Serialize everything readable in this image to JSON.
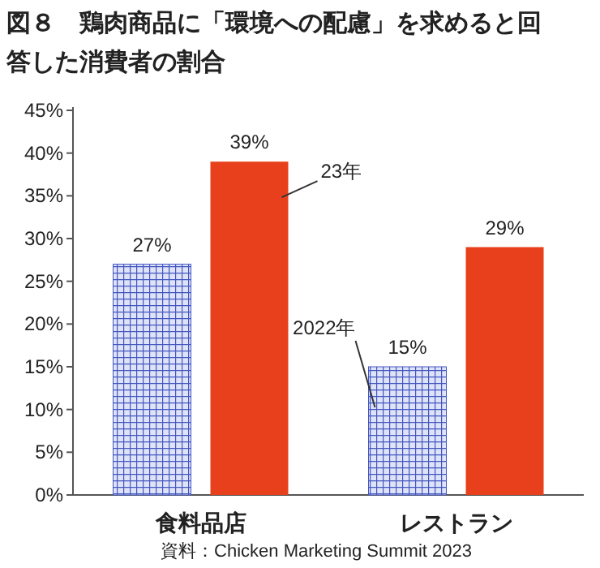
{
  "chart_data": {
    "type": "bar",
    "title": "図８　鶏肉商品に「環境への配慮」を求めると回答した消費者の割合",
    "categories": [
      "食料品店",
      "レストラン"
    ],
    "series": [
      {
        "name": "2022年",
        "color": "#4356c0",
        "values": [
          27,
          15
        ],
        "value_labels": [
          "27%",
          "15%"
        ]
      },
      {
        "name": "23年",
        "color": "#e8401c",
        "values": [
          39,
          29
        ],
        "value_labels": [
          "39%",
          "29%"
        ]
      }
    ],
    "ylim": [
      0,
      45
    ],
    "yticks": [
      {
        "value": 0,
        "label": "0%"
      },
      {
        "value": 5,
        "label": "5%"
      },
      {
        "value": 10,
        "label": "10%"
      },
      {
        "value": 15,
        "label": "15%"
      },
      {
        "value": 20,
        "label": "20%"
      },
      {
        "value": 25,
        "label": "25%"
      },
      {
        "value": 30,
        "label": "30%"
      },
      {
        "value": 35,
        "label": "35%"
      },
      {
        "value": 40,
        "label": "40%"
      },
      {
        "value": 45,
        "label": "45%"
      }
    ],
    "grid": false,
    "annotations": [
      "資料：Chicken Marketing Summit 2023"
    ]
  }
}
